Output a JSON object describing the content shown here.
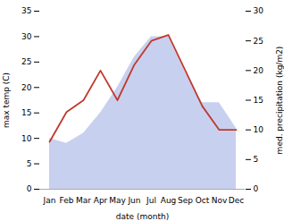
{
  "chart_data": {
    "type": "line",
    "categories": [
      "Jan",
      "Feb",
      "Mar",
      "Apr",
      "May",
      "Jun",
      "Jul",
      "Aug",
      "Sep",
      "Oct",
      "Nov",
      "Dec"
    ],
    "series": [
      {
        "type": "area",
        "color": "#c8d0f0",
        "values": [
          10.0,
          9.0,
          11.0,
          15.0,
          20.0,
          26.0,
          30.0,
          30.0,
          23.0,
          17.0,
          17.0,
          12.0
        ]
      },
      {
        "type": "line",
        "axis": "y2",
        "color": "#c0392b",
        "values": [
          8.0,
          13.0,
          15.0,
          20.0,
          15.0,
          21.0,
          25.0,
          26.0,
          20.0,
          14.0,
          10.0,
          10.0
        ]
      }
    ],
    "xlabel": "date (month)",
    "ylabel": "max temp (C)",
    "y2label": "med. precipitation (kg/m2)",
    "ylim": [
      0,
      35
    ],
    "yticks": [
      0,
      5,
      10,
      15,
      20,
      25,
      30,
      35
    ],
    "y2lim": [
      0,
      30
    ],
    "y2ticks": [
      0,
      5,
      10,
      15,
      20,
      25,
      30
    ],
    "grid": false
  }
}
